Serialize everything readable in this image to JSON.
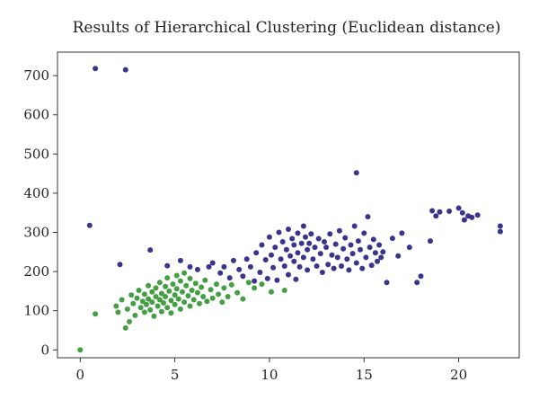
{
  "chart_data": {
    "type": "scatter",
    "title": "Results of Hierarchical Clustering (Euclidean distance)",
    "xlabel": "",
    "ylabel": "",
    "xlim": [
      -1.2,
      23.2
    ],
    "ylim": [
      -20,
      760
    ],
    "x_ticks": [
      0,
      5,
      10,
      15,
      20
    ],
    "y_ticks": [
      0,
      100,
      200,
      300,
      400,
      500,
      600,
      700
    ],
    "grid": false,
    "legend": "none",
    "series": [
      {
        "color": "#2e2a86",
        "points": [
          [
            0.8,
            718
          ],
          [
            2.4,
            715
          ],
          [
            0.5,
            318
          ],
          [
            2.1,
            218
          ],
          [
            3.7,
            255
          ],
          [
            4.6,
            215
          ],
          [
            5.3,
            228
          ],
          [
            5.8,
            212
          ],
          [
            6.2,
            205
          ],
          [
            6.8,
            212
          ],
          [
            7.0,
            222
          ],
          [
            7.4,
            196
          ],
          [
            7.6,
            212
          ],
          [
            7.9,
            184
          ],
          [
            8.1,
            228
          ],
          [
            8.4,
            205
          ],
          [
            8.6,
            188
          ],
          [
            8.8,
            232
          ],
          [
            9.0,
            212
          ],
          [
            9.2,
            176
          ],
          [
            9.3,
            248
          ],
          [
            9.5,
            198
          ],
          [
            9.6,
            268
          ],
          [
            9.8,
            230
          ],
          [
            9.9,
            182
          ],
          [
            10.0,
            288
          ],
          [
            10.1,
            242
          ],
          [
            10.2,
            210
          ],
          [
            10.3,
            262
          ],
          [
            10.4,
            178
          ],
          [
            10.5,
            300
          ],
          [
            10.6,
            232
          ],
          [
            10.7,
            276
          ],
          [
            10.8,
            214
          ],
          [
            10.9,
            256
          ],
          [
            11.0,
            308
          ],
          [
            11.0,
            192
          ],
          [
            11.1,
            240
          ],
          [
            11.2,
            284
          ],
          [
            11.3,
            226
          ],
          [
            11.3,
            268
          ],
          [
            11.4,
            180
          ],
          [
            11.5,
            298
          ],
          [
            11.5,
            248
          ],
          [
            11.6,
            212
          ],
          [
            11.7,
            272
          ],
          [
            11.8,
            316
          ],
          [
            11.8,
            236
          ],
          [
            11.9,
            288
          ],
          [
            12.0,
            256
          ],
          [
            12.0,
            204
          ],
          [
            12.1,
            272
          ],
          [
            12.2,
            296
          ],
          [
            12.3,
            232
          ],
          [
            12.4,
            262
          ],
          [
            12.5,
            214
          ],
          [
            12.6,
            284
          ],
          [
            12.7,
            246
          ],
          [
            12.8,
            198
          ],
          [
            12.9,
            276
          ],
          [
            13.0,
            262
          ],
          [
            13.1,
            218
          ],
          [
            13.2,
            296
          ],
          [
            13.3,
            242
          ],
          [
            13.4,
            208
          ],
          [
            13.5,
            270
          ],
          [
            13.6,
            236
          ],
          [
            13.7,
            304
          ],
          [
            13.8,
            214
          ],
          [
            13.9,
            258
          ],
          [
            14.0,
            286
          ],
          [
            14.1,
            232
          ],
          [
            14.2,
            204
          ],
          [
            14.3,
            268
          ],
          [
            14.4,
            246
          ],
          [
            14.5,
            316
          ],
          [
            14.6,
            452
          ],
          [
            14.6,
            222
          ],
          [
            14.7,
            278
          ],
          [
            14.8,
            256
          ],
          [
            14.9,
            208
          ],
          [
            15.0,
            298
          ],
          [
            15.1,
            236
          ],
          [
            15.2,
            340
          ],
          [
            15.3,
            262
          ],
          [
            15.4,
            216
          ],
          [
            15.5,
            282
          ],
          [
            15.6,
            248
          ],
          [
            15.7,
            226
          ],
          [
            15.8,
            268
          ],
          [
            15.9,
            236
          ],
          [
            16.0,
            250
          ],
          [
            16.2,
            172
          ],
          [
            16.5,
            285
          ],
          [
            16.8,
            240
          ],
          [
            17.0,
            298
          ],
          [
            17.4,
            262
          ],
          [
            17.8,
            172
          ],
          [
            18.0,
            188
          ],
          [
            18.5,
            278
          ],
          [
            18.6,
            355
          ],
          [
            18.8,
            342
          ],
          [
            19.0,
            352
          ],
          [
            19.5,
            354
          ],
          [
            20.0,
            362
          ],
          [
            20.2,
            350
          ],
          [
            20.3,
            332
          ],
          [
            20.5,
            342
          ],
          [
            20.7,
            338
          ],
          [
            21.0,
            344
          ],
          [
            22.2,
            316
          ],
          [
            22.2,
            302
          ]
        ]
      },
      {
        "color": "#3a9a3a",
        "points": [
          [
            0.0,
            0
          ],
          [
            0.8,
            92
          ],
          [
            1.9,
            112
          ],
          [
            2.0,
            96
          ],
          [
            2.2,
            128
          ],
          [
            2.4,
            56
          ],
          [
            2.5,
            104
          ],
          [
            2.6,
            72
          ],
          [
            2.7,
            140
          ],
          [
            2.8,
            118
          ],
          [
            2.9,
            88
          ],
          [
            3.0,
            132
          ],
          [
            3.1,
            152
          ],
          [
            3.2,
            108
          ],
          [
            3.3,
            124
          ],
          [
            3.4,
            96
          ],
          [
            3.4,
            142
          ],
          [
            3.5,
            116
          ],
          [
            3.6,
            164
          ],
          [
            3.6,
            130
          ],
          [
            3.7,
            102
          ],
          [
            3.8,
            148
          ],
          [
            3.8,
            122
          ],
          [
            3.9,
            86
          ],
          [
            4.0,
            136
          ],
          [
            4.0,
            158
          ],
          [
            4.1,
            112
          ],
          [
            4.2,
            172
          ],
          [
            4.2,
            128
          ],
          [
            4.3,
            144
          ],
          [
            4.3,
            98
          ],
          [
            4.4,
            120
          ],
          [
            4.5,
            162
          ],
          [
            4.5,
            136
          ],
          [
            4.6,
            108
          ],
          [
            4.6,
            184
          ],
          [
            4.7,
            150
          ],
          [
            4.8,
            126
          ],
          [
            4.8,
            94
          ],
          [
            4.9,
            168
          ],
          [
            5.0,
            140
          ],
          [
            5.0,
            116
          ],
          [
            5.1,
            190
          ],
          [
            5.1,
            156
          ],
          [
            5.2,
            130
          ],
          [
            5.3,
            104
          ],
          [
            5.3,
            176
          ],
          [
            5.4,
            148
          ],
          [
            5.5,
            122
          ],
          [
            5.5,
            196
          ],
          [
            5.6,
            164
          ],
          [
            5.7,
            138
          ],
          [
            5.8,
            112
          ],
          [
            5.8,
            182
          ],
          [
            5.9,
            152
          ],
          [
            6.0,
            128
          ],
          [
            6.1,
            170
          ],
          [
            6.2,
            146
          ],
          [
            6.3,
            118
          ],
          [
            6.4,
            160
          ],
          [
            6.5,
            136
          ],
          [
            6.6,
            178
          ],
          [
            6.7,
            124
          ],
          [
            6.9,
            154
          ],
          [
            7.0,
            132
          ],
          [
            7.2,
            168
          ],
          [
            7.3,
            142
          ],
          [
            7.5,
            122
          ],
          [
            7.6,
            158
          ],
          [
            7.8,
            136
          ],
          [
            8.0,
            166
          ],
          [
            8.3,
            146
          ],
          [
            8.6,
            130
          ],
          [
            8.9,
            172
          ],
          [
            9.2,
            158
          ],
          [
            9.6,
            168
          ],
          [
            10.1,
            148
          ],
          [
            10.8,
            152
          ]
        ]
      }
    ]
  }
}
